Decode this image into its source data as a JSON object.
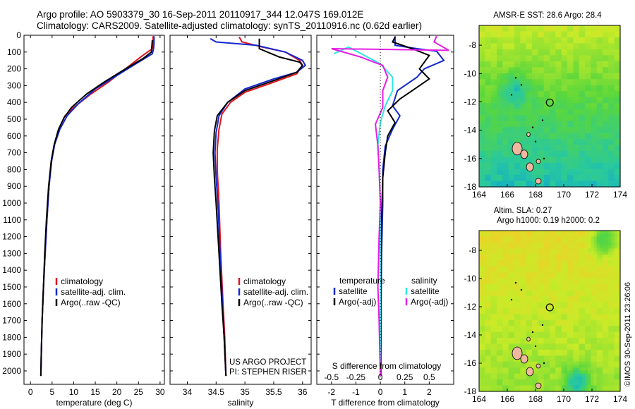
{
  "header": {
    "line1": "Argo profile: AO 5903379_30 16-Sep-2011 20110917_344 12.047S 169.012E",
    "line2": "Climatology: CARS2009. Satellite-adjusted climatology: synTS_20110916.nc (0.62d earlier)"
  },
  "project": {
    "line1": "US ARGO PROJECT",
    "line2": "PI: STEPHEN RISER"
  },
  "credit": "©IMOS 30-Sep-2011 23:26:06",
  "colors": {
    "clim": "#e0141e",
    "sat": "#1428d2",
    "argo": "#000000",
    "sat_s": "#2ee6e6",
    "argo_s": "#e61ee6"
  },
  "chart_data": [
    {
      "id": "temperature",
      "type": "line",
      "xlabel": "temperature (deg C)",
      "ylabel": "",
      "xlim": [
        -1.5,
        31
      ],
      "ylim": [
        2080,
        0
      ],
      "xticks": [
        0,
        5,
        10,
        15,
        20,
        25,
        30
      ],
      "yticks": [
        0,
        100,
        200,
        300,
        400,
        500,
        600,
        700,
        800,
        900,
        1000,
        1100,
        1200,
        1300,
        1400,
        1500,
        1600,
        1700,
        1800,
        1900,
        2000
      ],
      "legend": [
        "climatology",
        "satellite-adj. clim.",
        "Argo(..raw -QC)"
      ],
      "series": [
        {
          "name": "climatology",
          "color": "#e0141e",
          "points": [
            [
              28.4,
              5
            ],
            [
              28.3,
              50
            ],
            [
              28.2,
              80
            ],
            [
              25.5,
              130
            ],
            [
              22,
              200
            ],
            [
              18,
              280
            ],
            [
              14,
              350
            ],
            [
              10,
              430
            ],
            [
              8,
              480
            ],
            [
              6.5,
              560
            ],
            [
              5.5,
              650
            ],
            [
              4.8,
              750
            ],
            [
              4.3,
              900
            ],
            [
              3.8,
              1100
            ],
            [
              3.4,
              1300
            ],
            [
              3.0,
              1500
            ],
            [
              2.7,
              1700
            ],
            [
              2.5,
              1900
            ],
            [
              2.4,
              2030
            ]
          ]
        },
        {
          "name": "satellite-adj. clim.",
          "color": "#1428d2",
          "points": [
            [
              28.6,
              5
            ],
            [
              28.6,
              50
            ],
            [
              28.5,
              80
            ],
            [
              28.2,
              110
            ],
            [
              25,
              160
            ],
            [
              20,
              240
            ],
            [
              15,
              320
            ],
            [
              11,
              410
            ],
            [
              8.5,
              480
            ],
            [
              6.8,
              560
            ],
            [
              5.6,
              650
            ],
            [
              4.9,
              750
            ],
            [
              4.3,
              900
            ],
            [
              3.8,
              1100
            ],
            [
              3.4,
              1300
            ],
            [
              3.0,
              1500
            ],
            [
              2.7,
              1700
            ],
            [
              2.5,
              1900
            ],
            [
              2.4,
              2030
            ]
          ]
        },
        {
          "name": "Argo(..raw -QC)",
          "color": "#000000",
          "points": [
            [
              28.2,
              30
            ],
            [
              28.0,
              100
            ],
            [
              26,
              140
            ],
            [
              22,
              200
            ],
            [
              17,
              280
            ],
            [
              13,
              350
            ],
            [
              9.5,
              430
            ],
            [
              7.8,
              490
            ],
            [
              6.5,
              560
            ],
            [
              5.5,
              650
            ],
            [
              4.8,
              750
            ],
            [
              4.2,
              900
            ],
            [
              3.7,
              1100
            ],
            [
              3.3,
              1300
            ],
            [
              3.0,
              1500
            ],
            [
              2.7,
              1700
            ],
            [
              2.5,
              1900
            ],
            [
              2.4,
              2030
            ]
          ]
        }
      ]
    },
    {
      "id": "salinity",
      "type": "line",
      "xlabel": "salinity",
      "ylabel": "",
      "xlim": [
        33.7,
        36.15
      ],
      "ylim": [
        2080,
        0
      ],
      "xticks": [
        34,
        34.5,
        35,
        35.5,
        36
      ],
      "legend": [
        "climatology",
        "satellite-adj. clim.",
        "Argo(..raw -QC)"
      ],
      "series": [
        {
          "name": "climatology",
          "color": "#e0141e",
          "points": [
            [
              34.9,
              10
            ],
            [
              34.95,
              40
            ],
            [
              35.3,
              70
            ],
            [
              35.7,
              100
            ],
            [
              35.95,
              150
            ],
            [
              36.0,
              180
            ],
            [
              35.9,
              230
            ],
            [
              35.5,
              280
            ],
            [
              35.0,
              340
            ],
            [
              34.75,
              400
            ],
            [
              34.6,
              470
            ],
            [
              34.55,
              560
            ],
            [
              34.52,
              680
            ],
            [
              34.52,
              800
            ],
            [
              34.55,
              1000
            ],
            [
              34.58,
              1300
            ],
            [
              34.62,
              1600
            ],
            [
              34.65,
              1800
            ],
            [
              34.67,
              2030
            ]
          ]
        },
        {
          "name": "satellite-adj. clim.",
          "color": "#1428d2",
          "points": [
            [
              34.4,
              20
            ],
            [
              34.5,
              40
            ],
            [
              35.2,
              60
            ],
            [
              35.7,
              100
            ],
            [
              36.0,
              150
            ],
            [
              36.05,
              180
            ],
            [
              35.9,
              220
            ],
            [
              35.5,
              260
            ],
            [
              35.0,
              320
            ],
            [
              34.7,
              400
            ],
            [
              34.55,
              480
            ],
            [
              34.5,
              580
            ],
            [
              34.48,
              700
            ],
            [
              34.5,
              850
            ],
            [
              34.53,
              1000
            ],
            [
              34.57,
              1300
            ],
            [
              34.61,
              1600
            ],
            [
              34.64,
              1800
            ],
            [
              34.67,
              2030
            ]
          ]
        },
        {
          "name": "Argo(..raw -QC)",
          "color": "#000000",
          "points": [
            [
              35.25,
              20
            ],
            [
              35.25,
              80
            ],
            [
              35.6,
              130
            ],
            [
              35.95,
              160
            ],
            [
              36.0,
              180
            ],
            [
              35.9,
              220
            ],
            [
              35.5,
              270
            ],
            [
              35.0,
              330
            ],
            [
              34.7,
              400
            ],
            [
              34.52,
              480
            ],
            [
              34.47,
              570
            ],
            [
              34.45,
              700
            ],
            [
              34.47,
              850
            ],
            [
              34.5,
              1000
            ],
            [
              34.55,
              1300
            ],
            [
              34.6,
              1600
            ],
            [
              34.64,
              1800
            ],
            [
              34.67,
              2030
            ]
          ]
        }
      ]
    },
    {
      "id": "differences",
      "type": "line",
      "xlabel": "T difference from climatology",
      "xlabel_top": "S difference from climatology",
      "xlim": [
        -2.6,
        3.0
      ],
      "ylim": [
        2080,
        0
      ],
      "xticks": [
        -2,
        -1,
        0,
        1,
        2
      ],
      "xticks_s": [
        [
          "-0.5",
          -2.0
        ],
        [
          "-0.25",
          -1.0
        ],
        [
          "0",
          0
        ],
        [
          "0.25",
          1.0
        ],
        [
          "0.5",
          2.0
        ]
      ],
      "legend_t_title": "temperature",
      "legend_s_title": "salinity",
      "legend_t": [
        "satellite",
        "Argo(-adj)"
      ],
      "legend_s": [
        "satellite",
        "Argo(-adj)"
      ],
      "series": [
        {
          "name": "T satellite",
          "color": "#1428d2",
          "points": [
            [
              0.6,
              5
            ],
            [
              0.6,
              60
            ],
            [
              1.5,
              80
            ],
            [
              2.3,
              95
            ],
            [
              2.6,
              150
            ],
            [
              1.8,
              200
            ],
            [
              1.5,
              250
            ],
            [
              0.7,
              330
            ],
            [
              0.5,
              420
            ],
            [
              0.8,
              480
            ],
            [
              0.5,
              560
            ],
            [
              0.2,
              660
            ],
            [
              0.1,
              800
            ],
            [
              0.1,
              1000
            ],
            [
              0.05,
              1300
            ],
            [
              0.03,
              1600
            ],
            [
              0.02,
              2030
            ]
          ]
        },
        {
          "name": "T Argo(-adj)",
          "color": "#000000",
          "points": [
            [
              0.6,
              10
            ],
            [
              0.5,
              40
            ],
            [
              1.3,
              80
            ],
            [
              2.0,
              120
            ],
            [
              1.6,
              200
            ],
            [
              2.0,
              260
            ],
            [
              1.4,
              320
            ],
            [
              0.8,
              380
            ],
            [
              0.3,
              450
            ],
            [
              0.6,
              520
            ],
            [
              0.3,
              600
            ],
            [
              0.2,
              700
            ],
            [
              0.1,
              850
            ],
            [
              0.05,
              1100
            ],
            [
              0.03,
              1400
            ],
            [
              0.02,
              1700
            ],
            [
              0.01,
              2030
            ]
          ]
        },
        {
          "name": "S satellite",
          "color": "#2ee6e6",
          "points": [
            [
              -1.9,
              110
            ],
            [
              -1.3,
              70
            ],
            [
              0.0,
              170
            ],
            [
              0.5,
              250
            ],
            [
              0.5,
              330
            ],
            [
              0.2,
              420
            ],
            [
              0.0,
              520
            ],
            [
              -0.1,
              650
            ],
            [
              -0.05,
              800
            ],
            [
              0.0,
              1000
            ],
            [
              0.0,
              1300
            ],
            [
              0.0,
              1600
            ],
            [
              0.0,
              2030
            ]
          ]
        },
        {
          "name": "S Argo(-adj)",
          "color": "#e61ee6",
          "points": [
            [
              2.3,
              5
            ],
            [
              2.2,
              40
            ],
            [
              2.8,
              90
            ],
            [
              -2.0,
              80
            ],
            [
              -0.8,
              130
            ],
            [
              0.1,
              180
            ],
            [
              0.3,
              250
            ],
            [
              0.1,
              330
            ],
            [
              0.1,
              430
            ],
            [
              -0.2,
              530
            ],
            [
              -0.1,
              660
            ],
            [
              -0.05,
              800
            ],
            [
              0.0,
              1000
            ],
            [
              -0.05,
              1200
            ],
            [
              -0.1,
              1500
            ],
            [
              -0.05,
              1700
            ],
            [
              0.0,
              2030
            ]
          ]
        }
      ]
    },
    {
      "id": "sst_map",
      "type": "heatmap",
      "title": "AMSR-E SST: 28.6 Argo: 28.4",
      "xlim": [
        164,
        174
      ],
      "ylim": [
        -18,
        -6.6
      ],
      "xticks": [
        164,
        166,
        168,
        170,
        172,
        174
      ],
      "yticks": [
        -8,
        -10,
        -12,
        -14,
        -16,
        -18
      ],
      "marker": [
        169.012,
        -12.047
      ]
    },
    {
      "id": "sla_map",
      "type": "heatmap",
      "title": "Altim. SLA: 0.27",
      "subtitle": "Argo h1000: 0.19 h2000: 0.2",
      "xlim": [
        164,
        174
      ],
      "ylim": [
        -18,
        -6.6
      ],
      "xticks": [
        164,
        166,
        168,
        170,
        172,
        174
      ],
      "yticks": [
        -8,
        -10,
        -12,
        -14,
        -16,
        -18
      ],
      "marker": [
        169.012,
        -12.047
      ]
    }
  ]
}
